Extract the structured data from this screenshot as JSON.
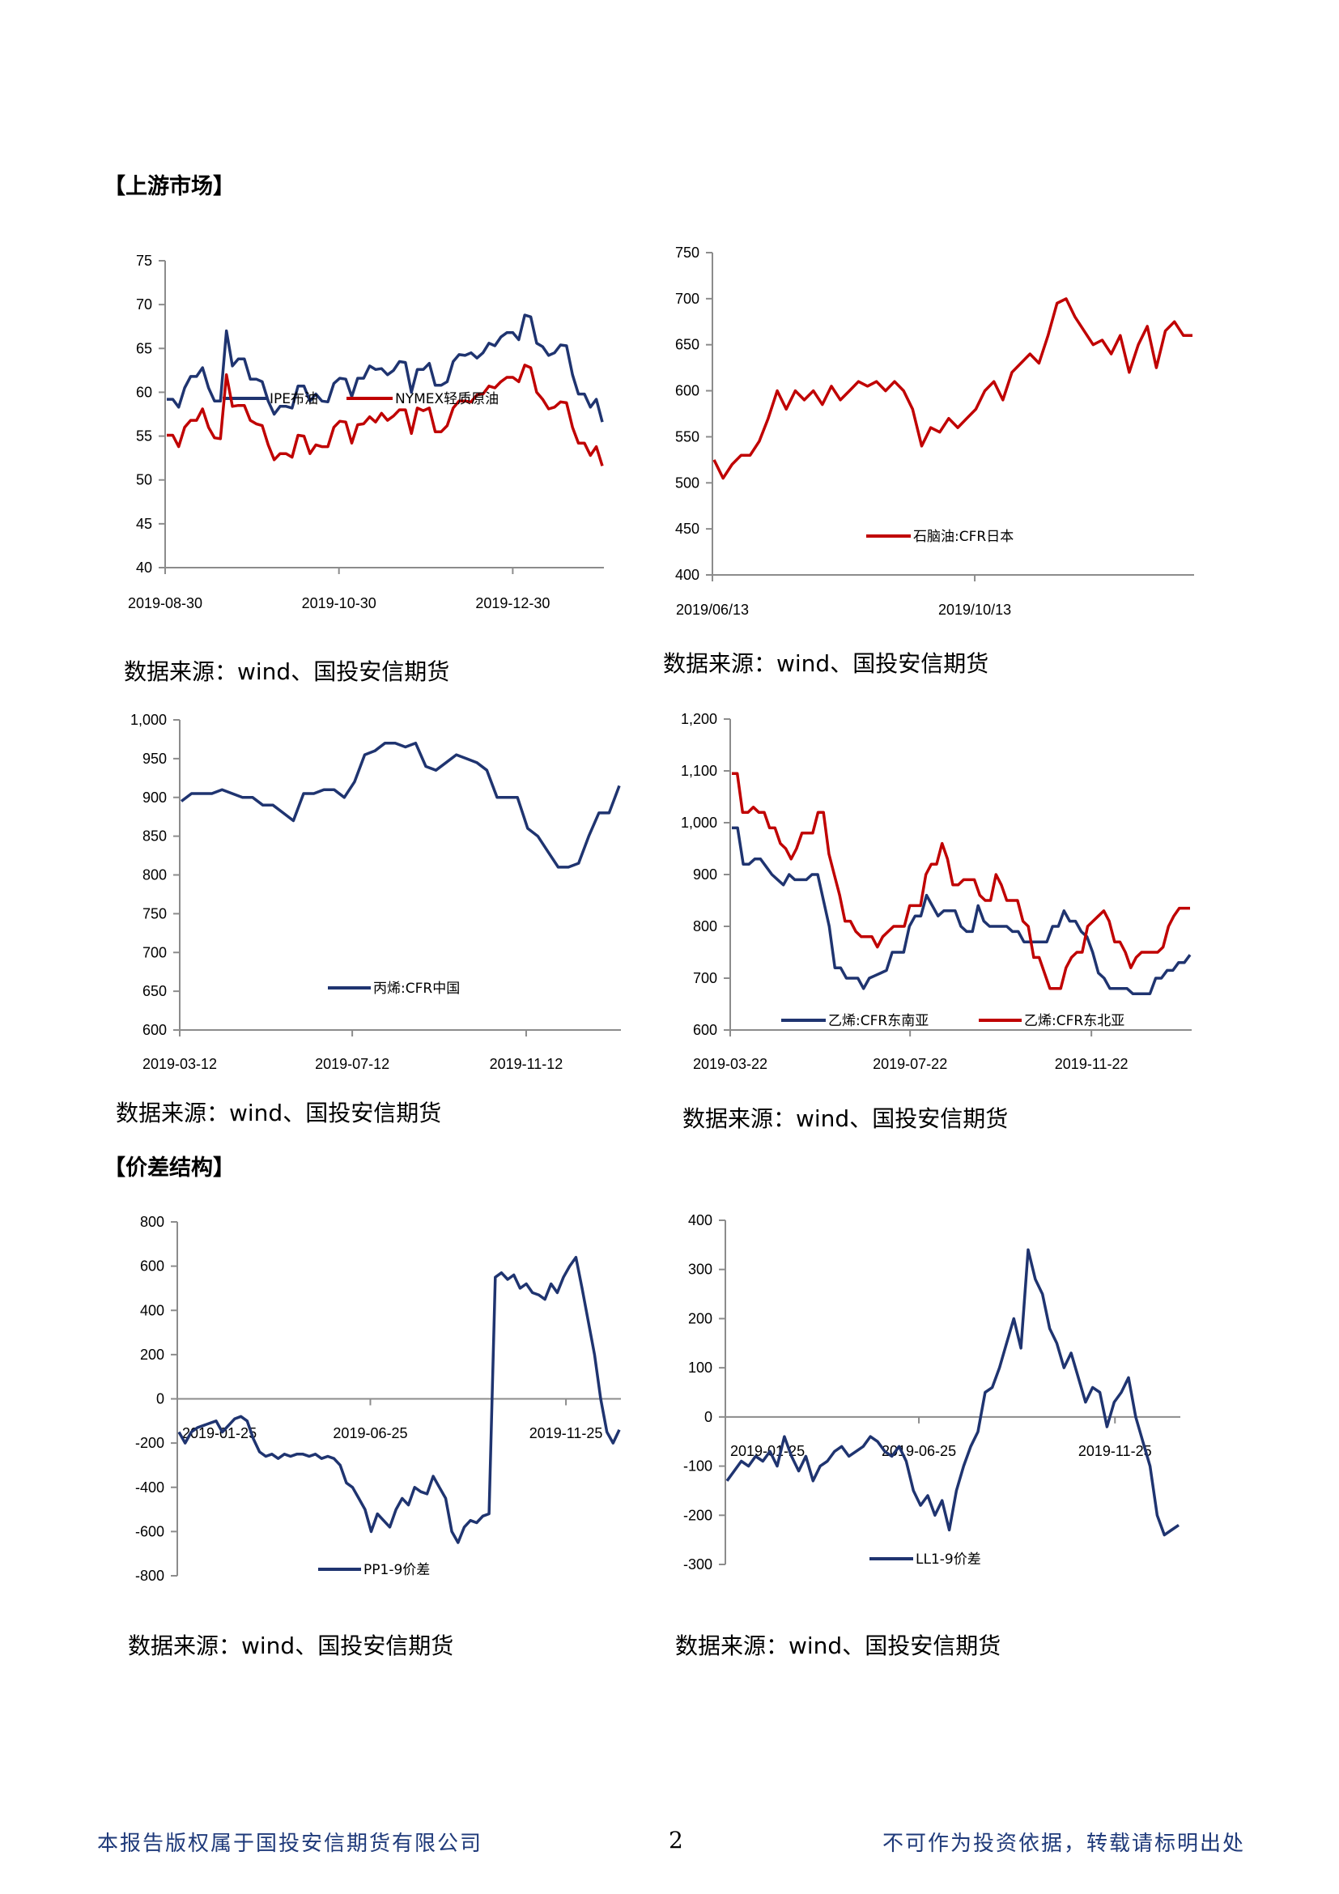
{
  "sections": {
    "upstream": "【上游市场】",
    "spread": "【价差结构】"
  },
  "source_caption": "数据来源：wind、国投安信期货",
  "footer": {
    "left": "本报告版权属于国投安信期货有限公司",
    "page": "2",
    "right": "不可作为投资依据，转载请标明出处"
  },
  "colors": {
    "navy": "#1f3470",
    "red": "#c00000",
    "axis": "#8c8c8c"
  },
  "chart_data": [
    {
      "type": "line",
      "ylim": [
        40,
        75
      ],
      "yticks": [
        "40",
        "45",
        "50",
        "55",
        "60",
        "65",
        "70",
        "75"
      ],
      "ytick_values": [
        40,
        45,
        50,
        55,
        60,
        65,
        70,
        75
      ],
      "xlim": [
        "2019-08-30",
        "2020-01-31"
      ],
      "xticks": [
        "2019-08-30",
        "2019-10-30",
        "2019-12-30"
      ],
      "legend": "top",
      "series": [
        {
          "name": "IPE布油",
          "color": "#1f3470",
          "values": [
            59.2,
            59.2,
            58.3,
            60.5,
            61.8,
            61.8,
            62.8,
            60.5,
            59,
            59,
            67,
            63,
            63.8,
            63.8,
            61.5,
            61.5,
            61.2,
            59,
            57.5,
            58.4,
            58.4,
            58.2,
            60.7,
            60.7,
            59,
            59.8,
            59,
            58.9,
            61,
            61.6,
            61.5,
            59.5,
            61.6,
            61.6,
            63,
            62.6,
            62.7,
            62,
            62.5,
            63.5,
            63.4,
            60,
            62.6,
            62.6,
            63.3,
            60.8,
            60.8,
            61.2,
            63.5,
            64.3,
            64.2,
            64.5,
            63.9,
            64.5,
            65.6,
            65.3,
            66.3,
            66.8,
            66.8,
            66,
            68.8,
            68.6,
            65.6,
            65.2,
            64.2,
            64.5,
            65.4,
            65.3,
            62,
            59.8,
            59.8,
            58.3,
            59.2,
            56.6
          ]
        },
        {
          "name": "NYMEX轻质原油",
          "color": "#c00000",
          "values": [
            55.1,
            55.1,
            53.8,
            56,
            56.8,
            56.8,
            58.1,
            56,
            54.8,
            54.7,
            62,
            58.4,
            58.5,
            58.5,
            56.8,
            56.4,
            56.2,
            54,
            52.3,
            53,
            53,
            52.6,
            55.1,
            55,
            53,
            54,
            53.8,
            53.8,
            56,
            56.7,
            56.6,
            54.2,
            56.3,
            56.4,
            57.2,
            56.6,
            57.6,
            56.8,
            57.3,
            58,
            58,
            55.3,
            58.2,
            57.9,
            58.2,
            55.5,
            55.5,
            56.2,
            58.2,
            59,
            59,
            58.9,
            59.7,
            59.8,
            60.7,
            60.5,
            61.2,
            61.7,
            61.7,
            61.2,
            63.1,
            62.8,
            60,
            59.2,
            58.1,
            58.3,
            58.9,
            58.8,
            56,
            54.2,
            54.2,
            52.8,
            53.8,
            51.6
          ]
        }
      ]
    },
    {
      "type": "line",
      "ylim": [
        400,
        750
      ],
      "yticks": [
        "400",
        "450",
        "500",
        "550",
        "600",
        "650",
        "700",
        "750"
      ],
      "ytick_values": [
        400,
        450,
        500,
        550,
        600,
        650,
        700,
        750
      ],
      "xlim": [
        "2019-06-13",
        "2020-01-23"
      ],
      "xticks": [
        "2019/06/13",
        "2019/10/13"
      ],
      "xtick_dates": [
        "2019-06-13",
        "2019-10-13"
      ],
      "legend": "bottom-right",
      "series": [
        {
          "name": "石脑油:CFR日本",
          "color": "#c00000",
          "values": [
            525,
            505,
            520,
            530,
            530,
            545,
            570,
            600,
            580,
            600,
            590,
            600,
            585,
            605,
            590,
            600,
            610,
            605,
            610,
            600,
            610,
            600,
            580,
            540,
            560,
            555,
            570,
            560,
            570,
            580,
            600,
            610,
            590,
            620,
            630,
            640,
            630,
            660,
            695,
            700,
            680,
            665,
            650,
            655,
            640,
            660,
            620,
            650,
            670,
            625,
            665,
            675,
            660,
            660
          ]
        }
      ]
    },
    {
      "type": "line",
      "ylim": [
        600,
        1000
      ],
      "yticks": [
        "600",
        "650",
        "700",
        "750",
        "800",
        "850",
        "900",
        "950",
        "1,000"
      ],
      "ytick_values": [
        600,
        650,
        700,
        750,
        800,
        850,
        900,
        950,
        1000
      ],
      "xlim": [
        "2019-03-12",
        "2020-01-18"
      ],
      "xticks": [
        "2019-03-12",
        "2019-07-12",
        "2019-11-12"
      ],
      "legend": "bottom",
      "series": [
        {
          "name": "丙烯:CFR中国",
          "color": "#1f3470",
          "values": [
            895,
            905,
            905,
            905,
            910,
            905,
            900,
            900,
            890,
            890,
            880,
            870,
            905,
            905,
            910,
            910,
            900,
            920,
            955,
            960,
            970,
            970,
            965,
            970,
            940,
            935,
            945,
            955,
            950,
            945,
            935,
            900,
            900,
            900,
            860,
            850,
            830,
            810,
            810,
            815,
            850,
            880,
            880,
            915
          ]
        }
      ]
    },
    {
      "type": "line",
      "ylim": [
        600,
        1200
      ],
      "yticks": [
        "600",
        "700",
        "800",
        "900",
        "1,000",
        "1,100",
        "1,200"
      ],
      "ytick_values": [
        600,
        700,
        800,
        900,
        1000,
        1100,
        1200
      ],
      "xlim": [
        "2019-03-22",
        "2020-01-29"
      ],
      "xticks": [
        "2019-03-22",
        "2019-07-22",
        "2019-11-22"
      ],
      "legend": "bottom",
      "series": [
        {
          "name": "乙烯:CFR东南亚",
          "color": "#1f3470",
          "values": [
            990,
            990,
            920,
            920,
            930,
            930,
            915,
            900,
            890,
            880,
            900,
            890,
            890,
            890,
            900,
            900,
            850,
            800,
            720,
            720,
            700,
            700,
            700,
            680,
            700,
            705,
            710,
            715,
            750,
            750,
            750,
            800,
            820,
            820,
            860,
            840,
            820,
            830,
            830,
            830,
            800,
            790,
            790,
            840,
            810,
            800,
            800,
            800,
            800,
            790,
            790,
            770,
            770,
            770,
            770,
            770,
            800,
            800,
            830,
            810,
            810,
            790,
            780,
            750,
            710,
            700,
            680,
            680,
            680,
            680,
            670,
            670,
            670,
            670,
            700,
            700,
            715,
            715,
            730,
            730,
            745
          ]
        },
        {
          "name": "乙烯:CFR东北亚",
          "color": "#c00000",
          "values": [
            1095,
            1095,
            1020,
            1020,
            1030,
            1020,
            1020,
            990,
            990,
            960,
            950,
            930,
            950,
            980,
            980,
            980,
            1020,
            1020,
            940,
            900,
            860,
            810,
            810,
            790,
            780,
            780,
            780,
            760,
            780,
            790,
            800,
            800,
            800,
            840,
            840,
            840,
            900,
            920,
            920,
            960,
            930,
            880,
            880,
            890,
            890,
            890,
            860,
            850,
            850,
            900,
            880,
            850,
            850,
            850,
            810,
            800,
            740,
            740,
            710,
            680,
            680,
            680,
            720,
            740,
            750,
            750,
            800,
            810,
            820,
            830,
            810,
            770,
            770,
            750,
            720,
            740,
            750,
            750,
            750,
            750,
            760,
            800,
            820,
            835,
            835,
            835
          ]
        }
      ]
    },
    {
      "type": "line",
      "ylim": [
        -800,
        800
      ],
      "yticks": [
        "-800",
        "-600",
        "-400",
        "-200",
        "0",
        "200",
        "400",
        "600",
        "800"
      ],
      "ytick_values": [
        -800,
        -600,
        -400,
        -200,
        0,
        200,
        400,
        600,
        800
      ],
      "xlim": [
        "2019-01-25",
        "2020-01-07"
      ],
      "xticks": [
        "2019-01-25",
        "2019-06-25",
        "2019-11-25"
      ],
      "legend": "bottom",
      "series": [
        {
          "name": "PP1-9价差",
          "color": "#1f3470",
          "values": [
            -150,
            -200,
            -150,
            -130,
            -120,
            -110,
            -100,
            -150,
            -120,
            -90,
            -80,
            -100,
            -180,
            -240,
            -260,
            -250,
            -270,
            -250,
            -260,
            -250,
            -250,
            -260,
            -250,
            -270,
            -260,
            -270,
            -300,
            -380,
            -400,
            -450,
            -500,
            -600,
            -520,
            -550,
            -580,
            -500,
            -450,
            -480,
            -400,
            -420,
            -430,
            -350,
            -400,
            -450,
            -600,
            -650,
            -580,
            -550,
            -560,
            -530,
            -520,
            550,
            570,
            540,
            560,
            500,
            520,
            480,
            470,
            450,
            520,
            480,
            550,
            600,
            640,
            500,
            350,
            200,
            0,
            -150,
            -200,
            -140
          ]
        }
      ]
    },
    {
      "type": "line",
      "ylim": [
        -300,
        400
      ],
      "yticks": [
        "-300",
        "-200",
        "-100",
        "0",
        "100",
        "200",
        "300",
        "400"
      ],
      "ytick_values": [
        -300,
        -200,
        -100,
        0,
        100,
        200,
        300,
        400
      ],
      "xlim": [
        "2019-01-25",
        "2020-01-15"
      ],
      "xticks": [
        "2019-01-25",
        "2019-06-25",
        "2019-11-25"
      ],
      "legend": "bottom",
      "series": [
        {
          "name": "LL1-9价差",
          "color": "#1f3470",
          "values": [
            -130,
            -110,
            -90,
            -100,
            -80,
            -90,
            -70,
            -100,
            -40,
            -80,
            -110,
            -80,
            -130,
            -100,
            -90,
            -70,
            -60,
            -80,
            -70,
            -60,
            -40,
            -50,
            -70,
            -80,
            -60,
            -90,
            -150,
            -180,
            -160,
            -200,
            -170,
            -230,
            -150,
            -100,
            -60,
            -30,
            50,
            60,
            100,
            150,
            200,
            140,
            340,
            280,
            250,
            180,
            150,
            100,
            130,
            80,
            30,
            60,
            50,
            -20,
            30,
            50,
            80,
            0,
            -50,
            -100,
            -200,
            -240,
            -230,
            -220
          ]
        }
      ]
    }
  ]
}
